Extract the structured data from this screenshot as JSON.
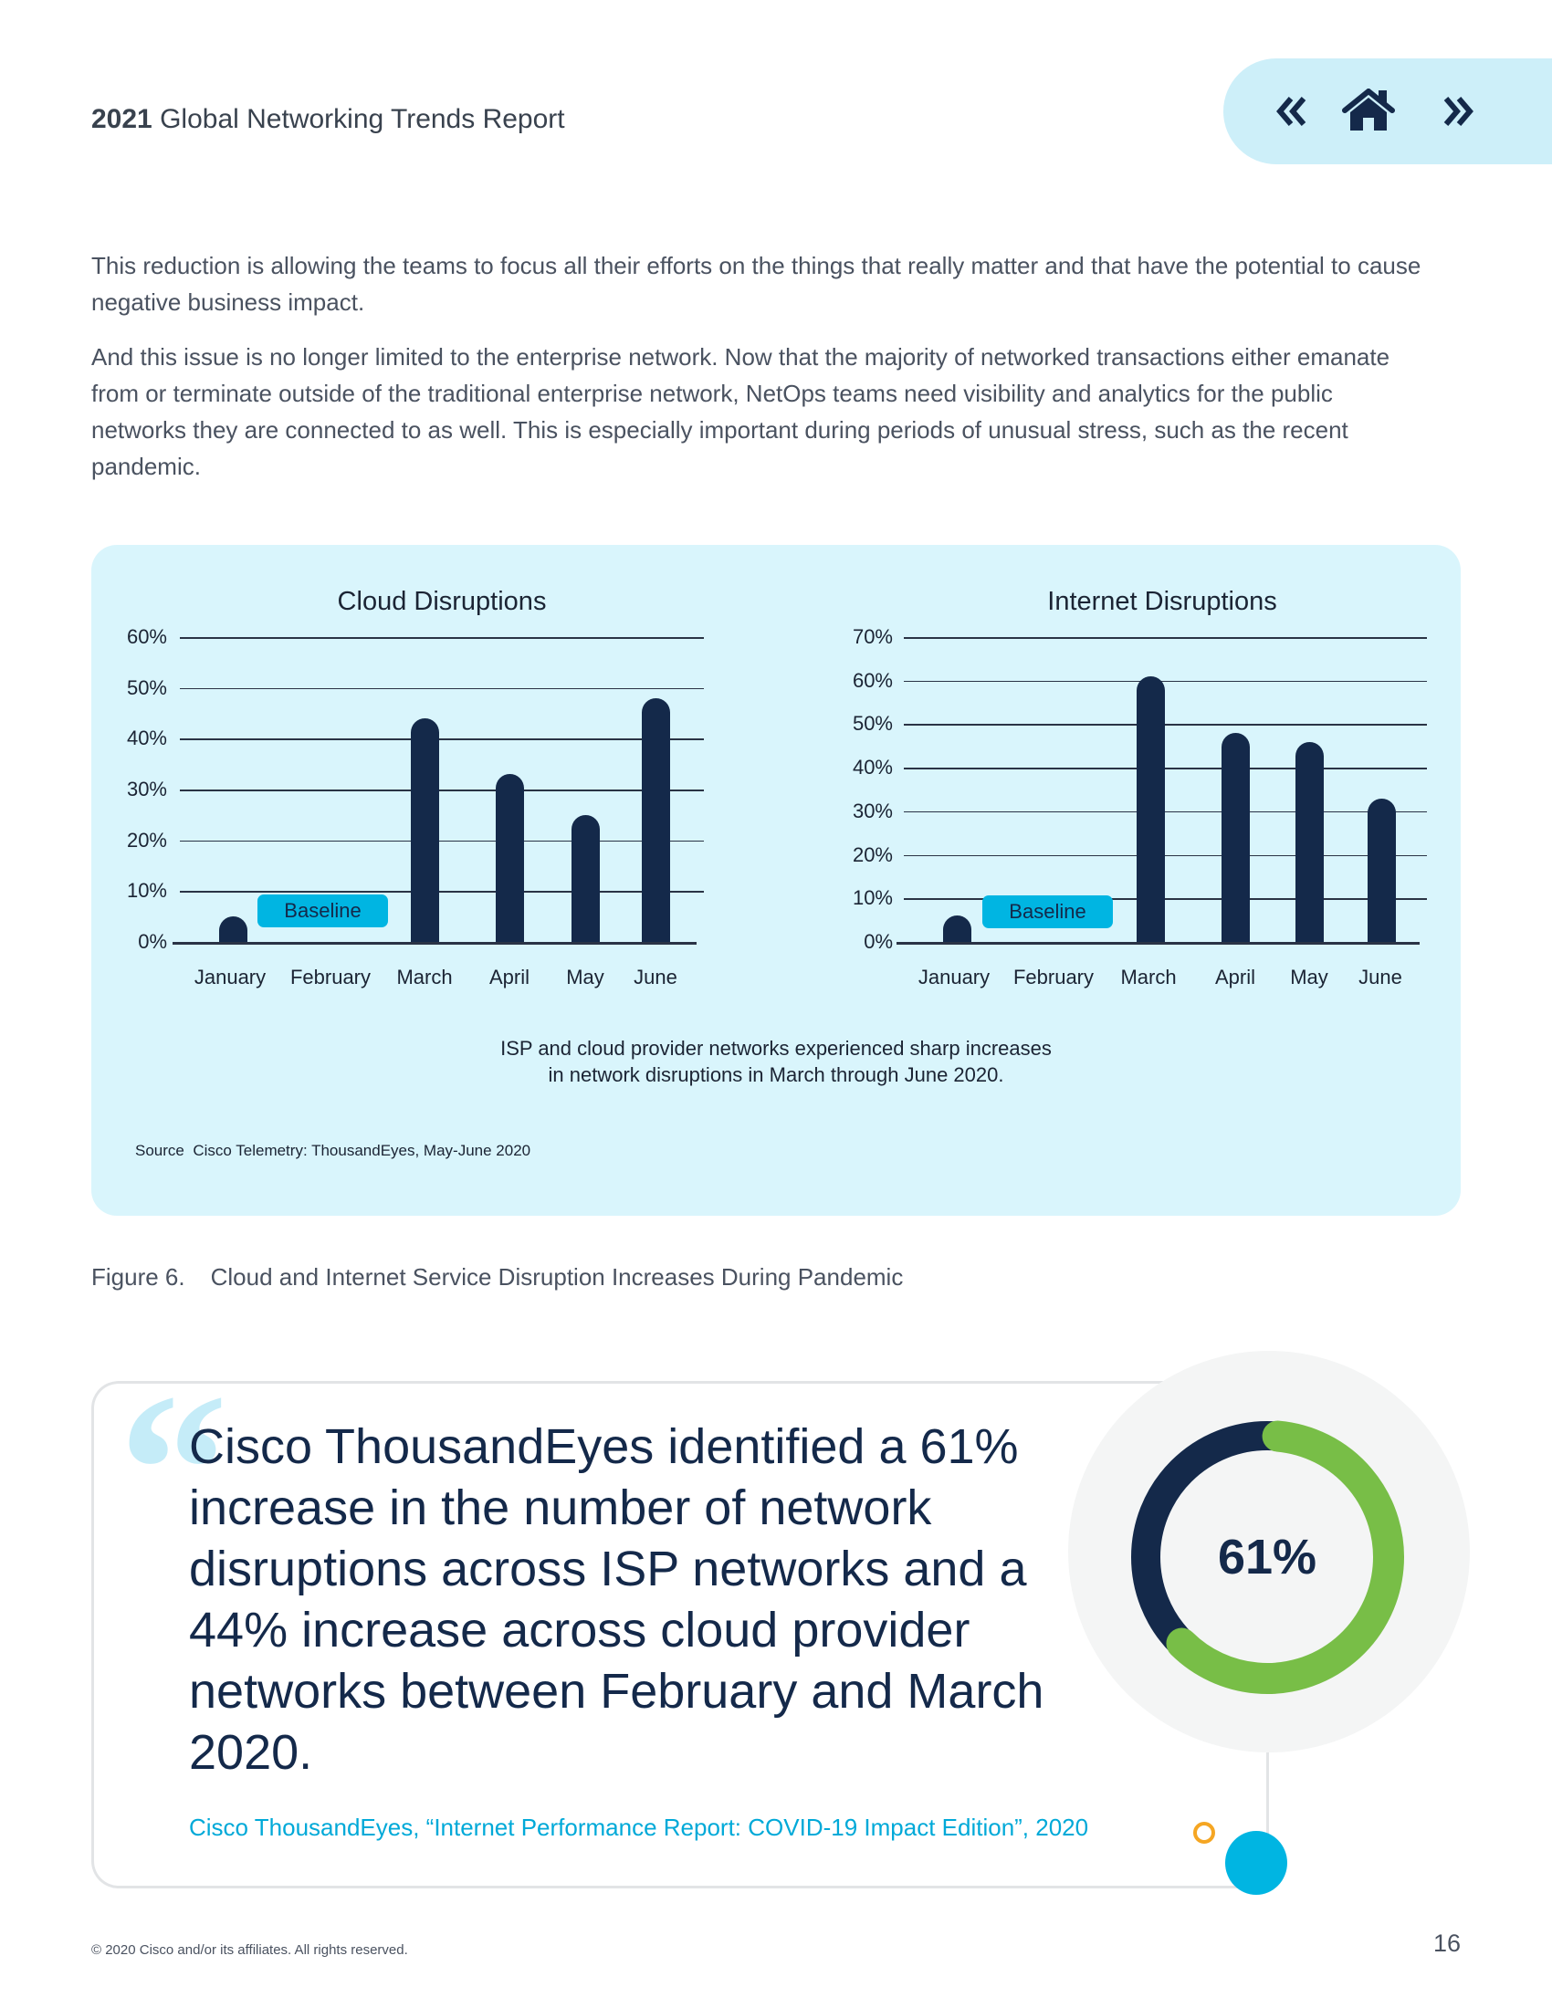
{
  "header": {
    "title_bold": "2021",
    "title_rest": " Global Networking Trends Report"
  },
  "nav": {
    "prev_icon": "double-chevron-left-icon",
    "home_icon": "home-icon",
    "next_icon": "double-chevron-right-icon"
  },
  "body": {
    "paragraphs": [
      "This reduction is allowing the teams to focus all their efforts on the things that really matter and that have the potential to cause negative business impact.",
      "And this issue is no longer limited to the enterprise network. Now that the majority of networked transactions either emanate from or terminate outside of the traditional enterprise network, NetOps teams need visibility and analytics for the public networks they are connected to as well. This is especially important during periods of unusual stress, such as the recent pandemic."
    ]
  },
  "chart_data": [
    {
      "type": "bar",
      "title": "Cloud Disruptions",
      "categories": [
        "January",
        "February",
        "March",
        "April",
        "May",
        "June"
      ],
      "values": [
        5,
        null,
        44,
        33,
        25,
        48
      ],
      "ylim": [
        0,
        60
      ],
      "yticks": [
        "0%",
        "10%",
        "20%",
        "30%",
        "40%",
        "50%",
        "60%"
      ],
      "annotation": "Baseline",
      "grid": true
    },
    {
      "type": "bar",
      "title": "Internet Disruptions",
      "categories": [
        "January",
        "February",
        "March",
        "April",
        "May",
        "June"
      ],
      "values": [
        6,
        null,
        61,
        48,
        46,
        33
      ],
      "ylim": [
        0,
        70
      ],
      "yticks": [
        "0%",
        "10%",
        "20%",
        "30%",
        "40%",
        "50%",
        "60%",
        "70%"
      ],
      "annotation": "Baseline",
      "grid": true
    }
  ],
  "panel": {
    "caption_line1": "ISP and cloud provider networks experienced sharp increases",
    "caption_line2": "in network disruptions in March through June 2020.",
    "source_label": "Source",
    "source_text": "Cisco Telemetry: ThousandEyes, May-June 2020",
    "bar_color": "#14294a",
    "bg_color": "#d9f5fc"
  },
  "figure": {
    "number": "Figure 6.",
    "caption": "Cloud and Internet Service Disruption Increases During Pandemic"
  },
  "quote": {
    "text": "Cisco ThousandEyes identified a 61% increase in the number of network disruptions across ISP networks and a 44% increase across cloud provider networks between February and March 2020.",
    "citation": "Cisco ThousandEyes, “Internet Performance Report: COVID-19 Impact Edition”, 2020",
    "donut_label": "61%",
    "donut_percent": 61,
    "donut_color": "#78be47",
    "donut_track_color": "#14294a"
  },
  "footer": {
    "copyright": "© 2020 Cisco and/or its affiliates. All rights reserved.",
    "page_number": "16"
  }
}
